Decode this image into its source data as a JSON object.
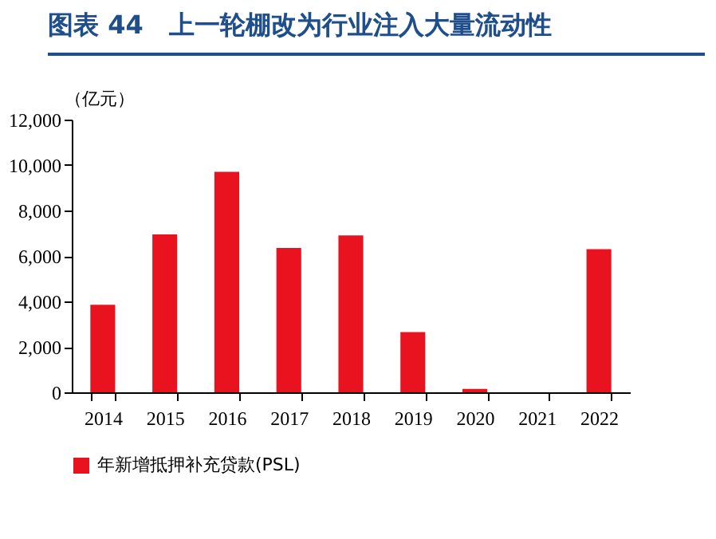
{
  "chart_data": {
    "type": "bar",
    "title": "图表 44　上一轮棚改为行业注入大量流动性",
    "ylabel": "（亿元）",
    "categories": [
      "2014",
      "2015",
      "2016",
      "2017",
      "2018",
      "2019",
      "2020",
      "2021",
      "2022"
    ],
    "series": [
      {
        "name": "年新增抵押补充贷款(PSL)",
        "color": "#e8131f",
        "values": [
          3850,
          6950,
          9700,
          6350,
          6900,
          2650,
          150,
          0,
          6300
        ]
      }
    ],
    "ylim": [
      0,
      12000
    ],
    "yticks": [
      0,
      {
        "value": 2000,
        "label": "2,000"
      },
      {
        "value": 4000,
        "label": "4,000"
      },
      {
        "value": 6000,
        "label": "6,000"
      },
      {
        "value": 8000,
        "label": "8,000"
      },
      {
        "value": 10000,
        "label": "10,000"
      },
      {
        "value": 12000,
        "label": "12,000"
      }
    ],
    "grid": false,
    "legend": "bottom"
  }
}
